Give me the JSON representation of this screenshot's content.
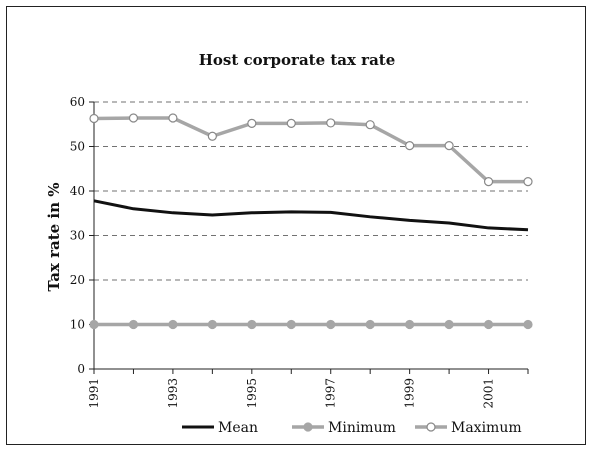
{
  "chart_data": {
    "type": "line",
    "title": "Host corporate tax rate",
    "ylabel": "Tax rate in %",
    "xlabel": "",
    "x": [
      1991,
      1992,
      1993,
      1994,
      1995,
      1996,
      1997,
      1998,
      1999,
      2000,
      2001,
      2002
    ],
    "x_tick_labels": [
      "1991",
      "1993",
      "1995",
      "1997",
      "1999",
      "2001"
    ],
    "x_tick_values": [
      1991,
      1993,
      1995,
      1997,
      1999,
      2001
    ],
    "ylim": [
      0,
      60
    ],
    "y_ticks": [
      0,
      10,
      20,
      30,
      40,
      50,
      60
    ],
    "grid": "horizontal dashed",
    "legend_position": "bottom",
    "series": [
      {
        "name": "Mean",
        "values": [
          37.8,
          36.0,
          35.1,
          34.6,
          35.1,
          35.3,
          35.2,
          34.2,
          33.4,
          32.8,
          31.7,
          31.3
        ],
        "color": "#111111",
        "marker": "none"
      },
      {
        "name": "Minimum",
        "values": [
          10,
          10,
          10,
          10,
          10,
          10,
          10,
          10,
          10,
          10,
          10,
          10
        ],
        "color": "#a6a6a6",
        "marker": "filled-circle"
      },
      {
        "name": "Maximum",
        "values": [
          56.3,
          56.4,
          56.4,
          52.3,
          55.2,
          55.2,
          55.3,
          54.9,
          50.2,
          50.2,
          42.1,
          42.1
        ],
        "color": "#a6a6a6",
        "marker": "open-circle"
      }
    ]
  }
}
